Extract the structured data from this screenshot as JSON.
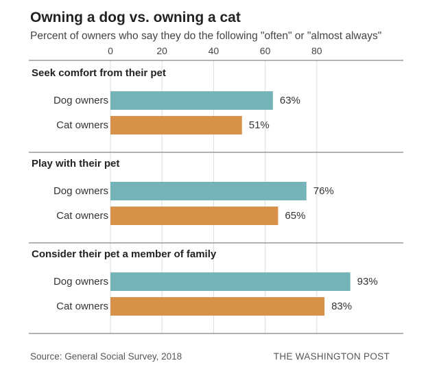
{
  "chart_data": {
    "type": "bar",
    "title": "Owning a dog vs. owning a cat",
    "subtitle": "Percent of owners who say they do the following \"often\" or \"almost always\"",
    "ticks": [
      "0",
      "20",
      "40",
      "60",
      "80"
    ],
    "xlim": [
      0,
      100
    ],
    "grid": true,
    "groups": [
      {
        "label": "Seek comfort from their pet",
        "bars": [
          {
            "category": "Dog owners",
            "value": 63,
            "label": "63%"
          },
          {
            "category": "Cat owners",
            "value": 51,
            "label": "51%"
          }
        ]
      },
      {
        "label": "Play with their pet",
        "bars": [
          {
            "category": "Dog owners",
            "value": 76,
            "label": "76%"
          },
          {
            "category": "Cat owners",
            "value": 65,
            "label": "65%"
          }
        ]
      },
      {
        "label": "Consider their pet a member of family",
        "bars": [
          {
            "category": "Dog owners",
            "value": 93,
            "label": "93%"
          },
          {
            "category": "Cat owners",
            "value": 83,
            "label": "83%"
          }
        ]
      }
    ],
    "colors": {
      "Dog owners": "#74b3b8",
      "Cat owners": "#d89148"
    },
    "source": "Source: General Social Survey, 2018",
    "credit": "THE WASHINGTON POST"
  }
}
